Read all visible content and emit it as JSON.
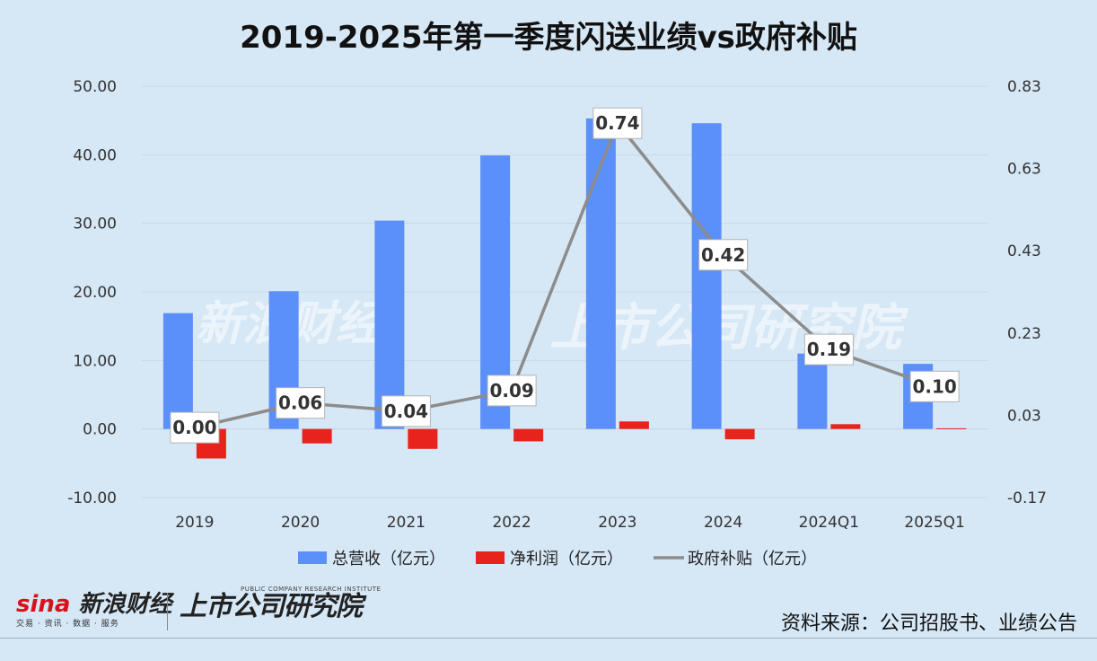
{
  "title": "2019-2025年第一季度闪送业绩vs政府补贴",
  "source": "资料来源：公司招股书、业绩公告",
  "logos": {
    "sina_main": "新浪财经",
    "sina_sub": "交易 · 资讯 · 数据 · 服务",
    "research_main": "上市公司研究院",
    "research_tag": "PUBLIC COMPANY RESEARCH INSTITUTE"
  },
  "colors": {
    "revenue": "#5b8ff9",
    "profit": "#e8221c",
    "subsidy": "#8c8c8c",
    "background": "#d6e7f5"
  },
  "chart_data": {
    "type": "bar",
    "title": "2019-2025年第一季度闪送业绩vs政府补贴",
    "categories": [
      "2019",
      "2020",
      "2021",
      "2022",
      "2023",
      "2024",
      "2024Q1",
      "2025Q1"
    ],
    "series": [
      {
        "name": "总营收（亿元）",
        "type": "bar",
        "axis": "left",
        "values": [
          16.9,
          20.1,
          30.4,
          39.9,
          45.3,
          44.6,
          11.0,
          9.5
        ]
      },
      {
        "name": "净利润（亿元）",
        "type": "bar",
        "axis": "left",
        "values": [
          -4.3,
          -2.1,
          -2.9,
          -1.8,
          1.1,
          -1.5,
          0.7,
          0.1
        ]
      },
      {
        "name": "政府补贴（亿元）",
        "type": "line",
        "axis": "right",
        "values": [
          0.0,
          0.06,
          0.04,
          0.09,
          0.74,
          0.42,
          0.19,
          0.1
        ],
        "labels": [
          "0.00",
          "0.06",
          "0.04",
          "0.09",
          "0.74",
          "0.42",
          "0.19",
          "0.10"
        ]
      }
    ],
    "y_left": {
      "min": -10,
      "max": 50,
      "ticks": [
        "50.00",
        "40.00",
        "30.00",
        "20.00",
        "10.00",
        "0.00",
        "-10.00"
      ],
      "tick_values": [
        50,
        40,
        30,
        20,
        10,
        0,
        -10
      ]
    },
    "y_right": {
      "min": -0.17,
      "max": 0.83,
      "ticks": [
        "0.83",
        "0.63",
        "0.43",
        "0.23",
        "0.03",
        "-0.17"
      ],
      "tick_values": [
        0.83,
        0.63,
        0.43,
        0.23,
        0.03,
        -0.17
      ]
    },
    "grid": true,
    "legend_position": "bottom"
  }
}
